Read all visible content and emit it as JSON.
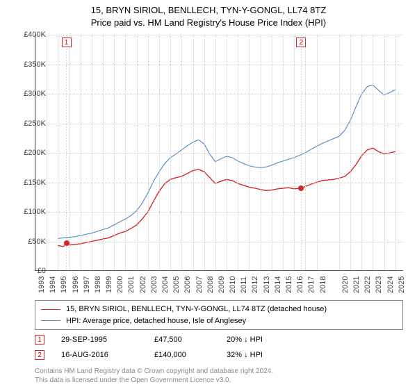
{
  "title_line1": "15, BRYN SIRIOL, BENLLECH, TYN-Y-GONGL, LL74 8TZ",
  "title_line2": "Price paid vs. HM Land Registry's House Price Index (HPI)",
  "chart": {
    "type": "line",
    "background_color": "#ffffff",
    "grid_color": "#cccccc",
    "xlim": [
      1993,
      2025.75
    ],
    "ylim": [
      0,
      400000
    ],
    "ytick_step": 50000,
    "yticks": [
      "£0",
      "£50K",
      "£100K",
      "£150K",
      "£200K",
      "£250K",
      "£300K",
      "£350K",
      "£400K"
    ],
    "xticks": [
      1993,
      1994,
      1995,
      1996,
      1997,
      1998,
      1999,
      2000,
      2001,
      2002,
      2003,
      2004,
      2005,
      2006,
      2007,
      2008,
      2009,
      2010,
      2011,
      2012,
      2013,
      2014,
      2015,
      2016,
      2017,
      2018,
      2020,
      2021,
      2022,
      2023,
      2024,
      2025
    ],
    "series_red": {
      "color": "#d62728",
      "width": 1.4,
      "label": "15, BRYN SIRIOL, BENLLECH, TYN-Y-GONGL, LL74 8TZ (detached house)",
      "points": [
        [
          1995.0,
          43000
        ],
        [
          1995.25,
          42000
        ],
        [
          1995.5,
          41500
        ],
        [
          1995.75,
          47500
        ],
        [
          1996.0,
          44000
        ],
        [
          1996.5,
          45000
        ],
        [
          1997.0,
          46000
        ],
        [
          1997.5,
          48000
        ],
        [
          1998.0,
          50000
        ],
        [
          1998.5,
          52000
        ],
        [
          1999.0,
          54000
        ],
        [
          1999.5,
          56000
        ],
        [
          2000.0,
          60000
        ],
        [
          2000.5,
          64000
        ],
        [
          2001.0,
          67000
        ],
        [
          2001.5,
          72000
        ],
        [
          2002.0,
          78000
        ],
        [
          2002.5,
          88000
        ],
        [
          2003.0,
          100000
        ],
        [
          2003.5,
          118000
        ],
        [
          2004.0,
          135000
        ],
        [
          2004.5,
          148000
        ],
        [
          2005.0,
          155000
        ],
        [
          2005.5,
          158000
        ],
        [
          2006.0,
          160000
        ],
        [
          2006.5,
          165000
        ],
        [
          2007.0,
          170000
        ],
        [
          2007.5,
          172000
        ],
        [
          2008.0,
          168000
        ],
        [
          2008.5,
          158000
        ],
        [
          2009.0,
          148000
        ],
        [
          2009.5,
          152000
        ],
        [
          2010.0,
          155000
        ],
        [
          2010.5,
          153000
        ],
        [
          2011.0,
          148000
        ],
        [
          2011.5,
          145000
        ],
        [
          2012.0,
          142000
        ],
        [
          2012.5,
          140000
        ],
        [
          2013.0,
          138000
        ],
        [
          2013.5,
          136000
        ],
        [
          2014.0,
          137000
        ],
        [
          2014.5,
          139000
        ],
        [
          2015.0,
          140000
        ],
        [
          2015.5,
          141000
        ],
        [
          2016.0,
          139000
        ],
        [
          2016.63,
          140000
        ],
        [
          2017.0,
          143000
        ],
        [
          2017.5,
          147000
        ],
        [
          2018.0,
          150000
        ],
        [
          2018.5,
          153000
        ],
        [
          2019.0,
          154000
        ],
        [
          2019.5,
          155000
        ],
        [
          2020.0,
          157000
        ],
        [
          2020.5,
          160000
        ],
        [
          2021.0,
          168000
        ],
        [
          2021.5,
          180000
        ],
        [
          2022.0,
          195000
        ],
        [
          2022.5,
          205000
        ],
        [
          2023.0,
          208000
        ],
        [
          2023.5,
          202000
        ],
        [
          2024.0,
          198000
        ],
        [
          2024.5,
          200000
        ],
        [
          2025.0,
          202000
        ]
      ]
    },
    "series_blue": {
      "color": "#5b8fc7",
      "width": 1.2,
      "label": "HPI: Average price, detached house, Isle of Anglesey",
      "points": [
        [
          1995.0,
          55000
        ],
        [
          1995.5,
          56000
        ],
        [
          1996.0,
          57000
        ],
        [
          1996.5,
          58000
        ],
        [
          1997.0,
          60000
        ],
        [
          1997.5,
          62000
        ],
        [
          1998.0,
          64000
        ],
        [
          1998.5,
          67000
        ],
        [
          1999.0,
          70000
        ],
        [
          1999.5,
          73000
        ],
        [
          2000.0,
          78000
        ],
        [
          2000.5,
          83000
        ],
        [
          2001.0,
          88000
        ],
        [
          2001.5,
          94000
        ],
        [
          2002.0,
          102000
        ],
        [
          2002.5,
          115000
        ],
        [
          2003.0,
          132000
        ],
        [
          2003.5,
          152000
        ],
        [
          2004.0,
          168000
        ],
        [
          2004.5,
          182000
        ],
        [
          2005.0,
          192000
        ],
        [
          2005.5,
          198000
        ],
        [
          2006.0,
          205000
        ],
        [
          2006.5,
          212000
        ],
        [
          2007.0,
          218000
        ],
        [
          2007.5,
          222000
        ],
        [
          2008.0,
          215000
        ],
        [
          2008.5,
          198000
        ],
        [
          2009.0,
          185000
        ],
        [
          2009.5,
          190000
        ],
        [
          2010.0,
          194000
        ],
        [
          2010.5,
          192000
        ],
        [
          2011.0,
          186000
        ],
        [
          2011.5,
          182000
        ],
        [
          2012.0,
          178000
        ],
        [
          2012.5,
          176000
        ],
        [
          2013.0,
          175000
        ],
        [
          2013.5,
          176000
        ],
        [
          2014.0,
          179000
        ],
        [
          2014.5,
          183000
        ],
        [
          2015.0,
          186000
        ],
        [
          2015.5,
          189000
        ],
        [
          2016.0,
          192000
        ],
        [
          2016.5,
          196000
        ],
        [
          2017.0,
          200000
        ],
        [
          2017.5,
          206000
        ],
        [
          2018.0,
          211000
        ],
        [
          2018.5,
          216000
        ],
        [
          2019.0,
          220000
        ],
        [
          2019.5,
          224000
        ],
        [
          2020.0,
          228000
        ],
        [
          2020.5,
          238000
        ],
        [
          2021.0,
          255000
        ],
        [
          2021.5,
          278000
        ],
        [
          2022.0,
          300000
        ],
        [
          2022.5,
          312000
        ],
        [
          2023.0,
          315000
        ],
        [
          2023.5,
          306000
        ],
        [
          2024.0,
          298000
        ],
        [
          2024.5,
          302000
        ],
        [
          2025.0,
          307000
        ]
      ]
    },
    "marker_vlines": [
      {
        "x": 1995.75,
        "label": "1"
      },
      {
        "x": 2016.63,
        "label": "2"
      }
    ],
    "marker_color": "#d62728",
    "marker_line_color": "#d9d9d9"
  },
  "sales": [
    {
      "n": "1",
      "date": "29-SEP-1995",
      "price": "£47,500",
      "delta": "20% ↓ HPI"
    },
    {
      "n": "2",
      "date": "16-AUG-2016",
      "price": "£140,000",
      "delta": "32% ↓ HPI"
    }
  ],
  "footnote_line1": "Contains HM Land Registry data © Crown copyright and database right 2024.",
  "footnote_line2": "This data is licensed under the Open Government Licence v3.0."
}
